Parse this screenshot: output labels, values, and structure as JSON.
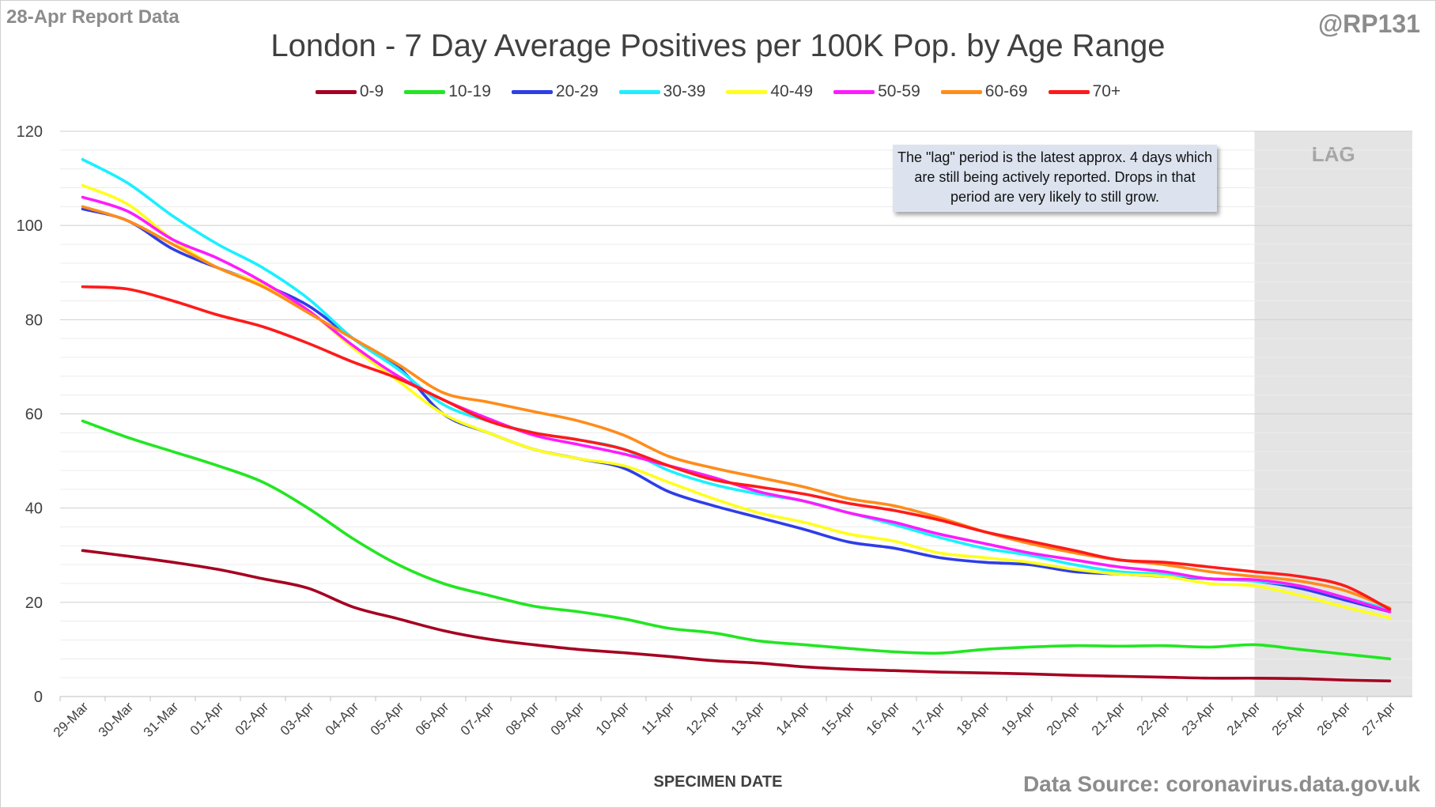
{
  "header": {
    "report_label": "28-Apr Report Data",
    "handle": "@RP131",
    "source": "Data Source: coronavirus.data.gov.uk"
  },
  "annotation": {
    "lag_label": "LAG",
    "note": "The \"lag\" period is the latest approx. 4 days which are still being actively reported. Drops in that period are very likely to still grow."
  },
  "chart_data": {
    "type": "line",
    "title": "London - 7 Day Average Positives per 100K Pop. by Age Range",
    "xlabel": "SPECIMEN DATE",
    "ylabel": "",
    "ylim": [
      0,
      120
    ],
    "yticks": [
      0,
      20,
      40,
      60,
      80,
      100,
      120
    ],
    "grid": true,
    "legend_position": "top",
    "lag_period": [
      "24-Apr",
      "27-Apr"
    ],
    "x": [
      "29-Mar",
      "30-Mar",
      "31-Mar",
      "01-Apr",
      "02-Apr",
      "03-Apr",
      "04-Apr",
      "05-Apr",
      "06-Apr",
      "07-Apr",
      "08-Apr",
      "09-Apr",
      "10-Apr",
      "11-Apr",
      "12-Apr",
      "13-Apr",
      "14-Apr",
      "15-Apr",
      "16-Apr",
      "17-Apr",
      "18-Apr",
      "19-Apr",
      "20-Apr",
      "21-Apr",
      "22-Apr",
      "23-Apr",
      "24-Apr",
      "25-Apr",
      "26-Apr",
      "27-Apr"
    ],
    "series": [
      {
        "name": "0-9",
        "color": "#a50021",
        "values": [
          31,
          29.8,
          28.5,
          27,
          25,
          23,
          19,
          16.5,
          14,
          12.2,
          11,
          10,
          9.3,
          8.5,
          7.6,
          7.1,
          6.3,
          5.8,
          5.5,
          5.2,
          5,
          4.8,
          4.5,
          4.3,
          4.1,
          3.9,
          3.9,
          3.8,
          3.5,
          3.3
        ]
      },
      {
        "name": "10-19",
        "color": "#22e622",
        "values": [
          58.5,
          55,
          52,
          49,
          45.5,
          40,
          33.5,
          28,
          24,
          21.5,
          19.2,
          18,
          16.5,
          14.5,
          13.5,
          11.8,
          11,
          10.2,
          9.5,
          9.2,
          10,
          10.5,
          10.8,
          10.7,
          10.8,
          10.5,
          11,
          10,
          9,
          8
        ]
      },
      {
        "name": "20-29",
        "color": "#2e3ee8",
        "values": [
          103.5,
          101,
          95,
          91,
          87.5,
          83,
          76,
          70,
          60,
          56,
          52.5,
          50.5,
          48.5,
          43.5,
          40.5,
          38,
          35.5,
          32.8,
          31.5,
          29.5,
          28.5,
          28,
          26.5,
          26,
          25.5,
          25,
          24.5,
          23,
          20.5,
          18
        ]
      },
      {
        "name": "30-39",
        "color": "#1af0ff",
        "values": [
          114,
          109,
          102,
          96,
          91,
          84.5,
          76,
          69.5,
          62,
          58.5,
          56,
          54.5,
          52.5,
          48,
          45,
          43,
          41.5,
          39,
          36.5,
          33.8,
          31.5,
          30,
          28,
          26.5,
          26,
          25,
          24.5,
          23.5,
          21,
          18.5
        ]
      },
      {
        "name": "40-49",
        "color": "#ffff1a",
        "values": [
          108.5,
          104.5,
          97,
          91,
          87.5,
          82,
          74,
          67,
          60,
          56,
          52.5,
          50.5,
          49,
          45.5,
          42,
          39,
          37,
          34.5,
          33,
          30.5,
          29.5,
          28.5,
          27,
          26,
          25.5,
          24,
          23.5,
          21.5,
          19,
          16.7
        ]
      },
      {
        "name": "50-59",
        "color": "#ff1aff",
        "values": [
          106,
          103,
          97,
          93,
          88,
          82,
          74.5,
          68,
          63,
          59,
          55.5,
          53.5,
          51.5,
          49,
          46.5,
          43.5,
          41.5,
          39,
          37,
          34.5,
          32.5,
          30.5,
          29,
          27.5,
          26.5,
          25,
          24.8,
          23.5,
          21,
          18
        ]
      },
      {
        "name": "60-69",
        "color": "#ff8c1a",
        "values": [
          104,
          101,
          96,
          91,
          87,
          81.5,
          76,
          70.5,
          64.5,
          62.5,
          60.5,
          58.5,
          55.5,
          51,
          48.5,
          46.5,
          44.5,
          42,
          40.5,
          38,
          35,
          32.5,
          30.5,
          29,
          28,
          26.5,
          25.5,
          24.5,
          22.5,
          18.8
        ]
      },
      {
        "name": "70+",
        "color": "#ff1a1a",
        "values": [
          87,
          86.5,
          84,
          81,
          78.5,
          75,
          71,
          67.5,
          63,
          58.5,
          56,
          54.5,
          52.5,
          49,
          46,
          44.5,
          43,
          41,
          39.5,
          37.5,
          35,
          33,
          31,
          29,
          28.5,
          27.5,
          26.5,
          25.5,
          23.5,
          18.5
        ]
      }
    ]
  }
}
